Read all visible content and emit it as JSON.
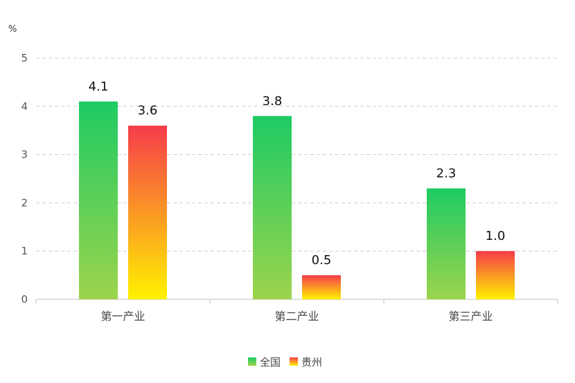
{
  "chart_data": {
    "type": "bar",
    "unit_label": "%",
    "categories": [
      "第一产业",
      "第二产业",
      "第三产业"
    ],
    "series": [
      {
        "name": "全国",
        "values": [
          4.1,
          3.8,
          2.3
        ],
        "color_top": "#1ecb64",
        "color_bottom": "#9cd44c"
      },
      {
        "name": "贵州",
        "values": [
          3.6,
          0.5,
          1.0
        ],
        "color_top": "#f63c4a",
        "color_bottom": "#fff200"
      }
    ],
    "ylim": [
      0,
      5
    ],
    "yticks": [
      0,
      1,
      2,
      3,
      4,
      5
    ],
    "grid": true,
    "legend_position": "bottom-center"
  }
}
